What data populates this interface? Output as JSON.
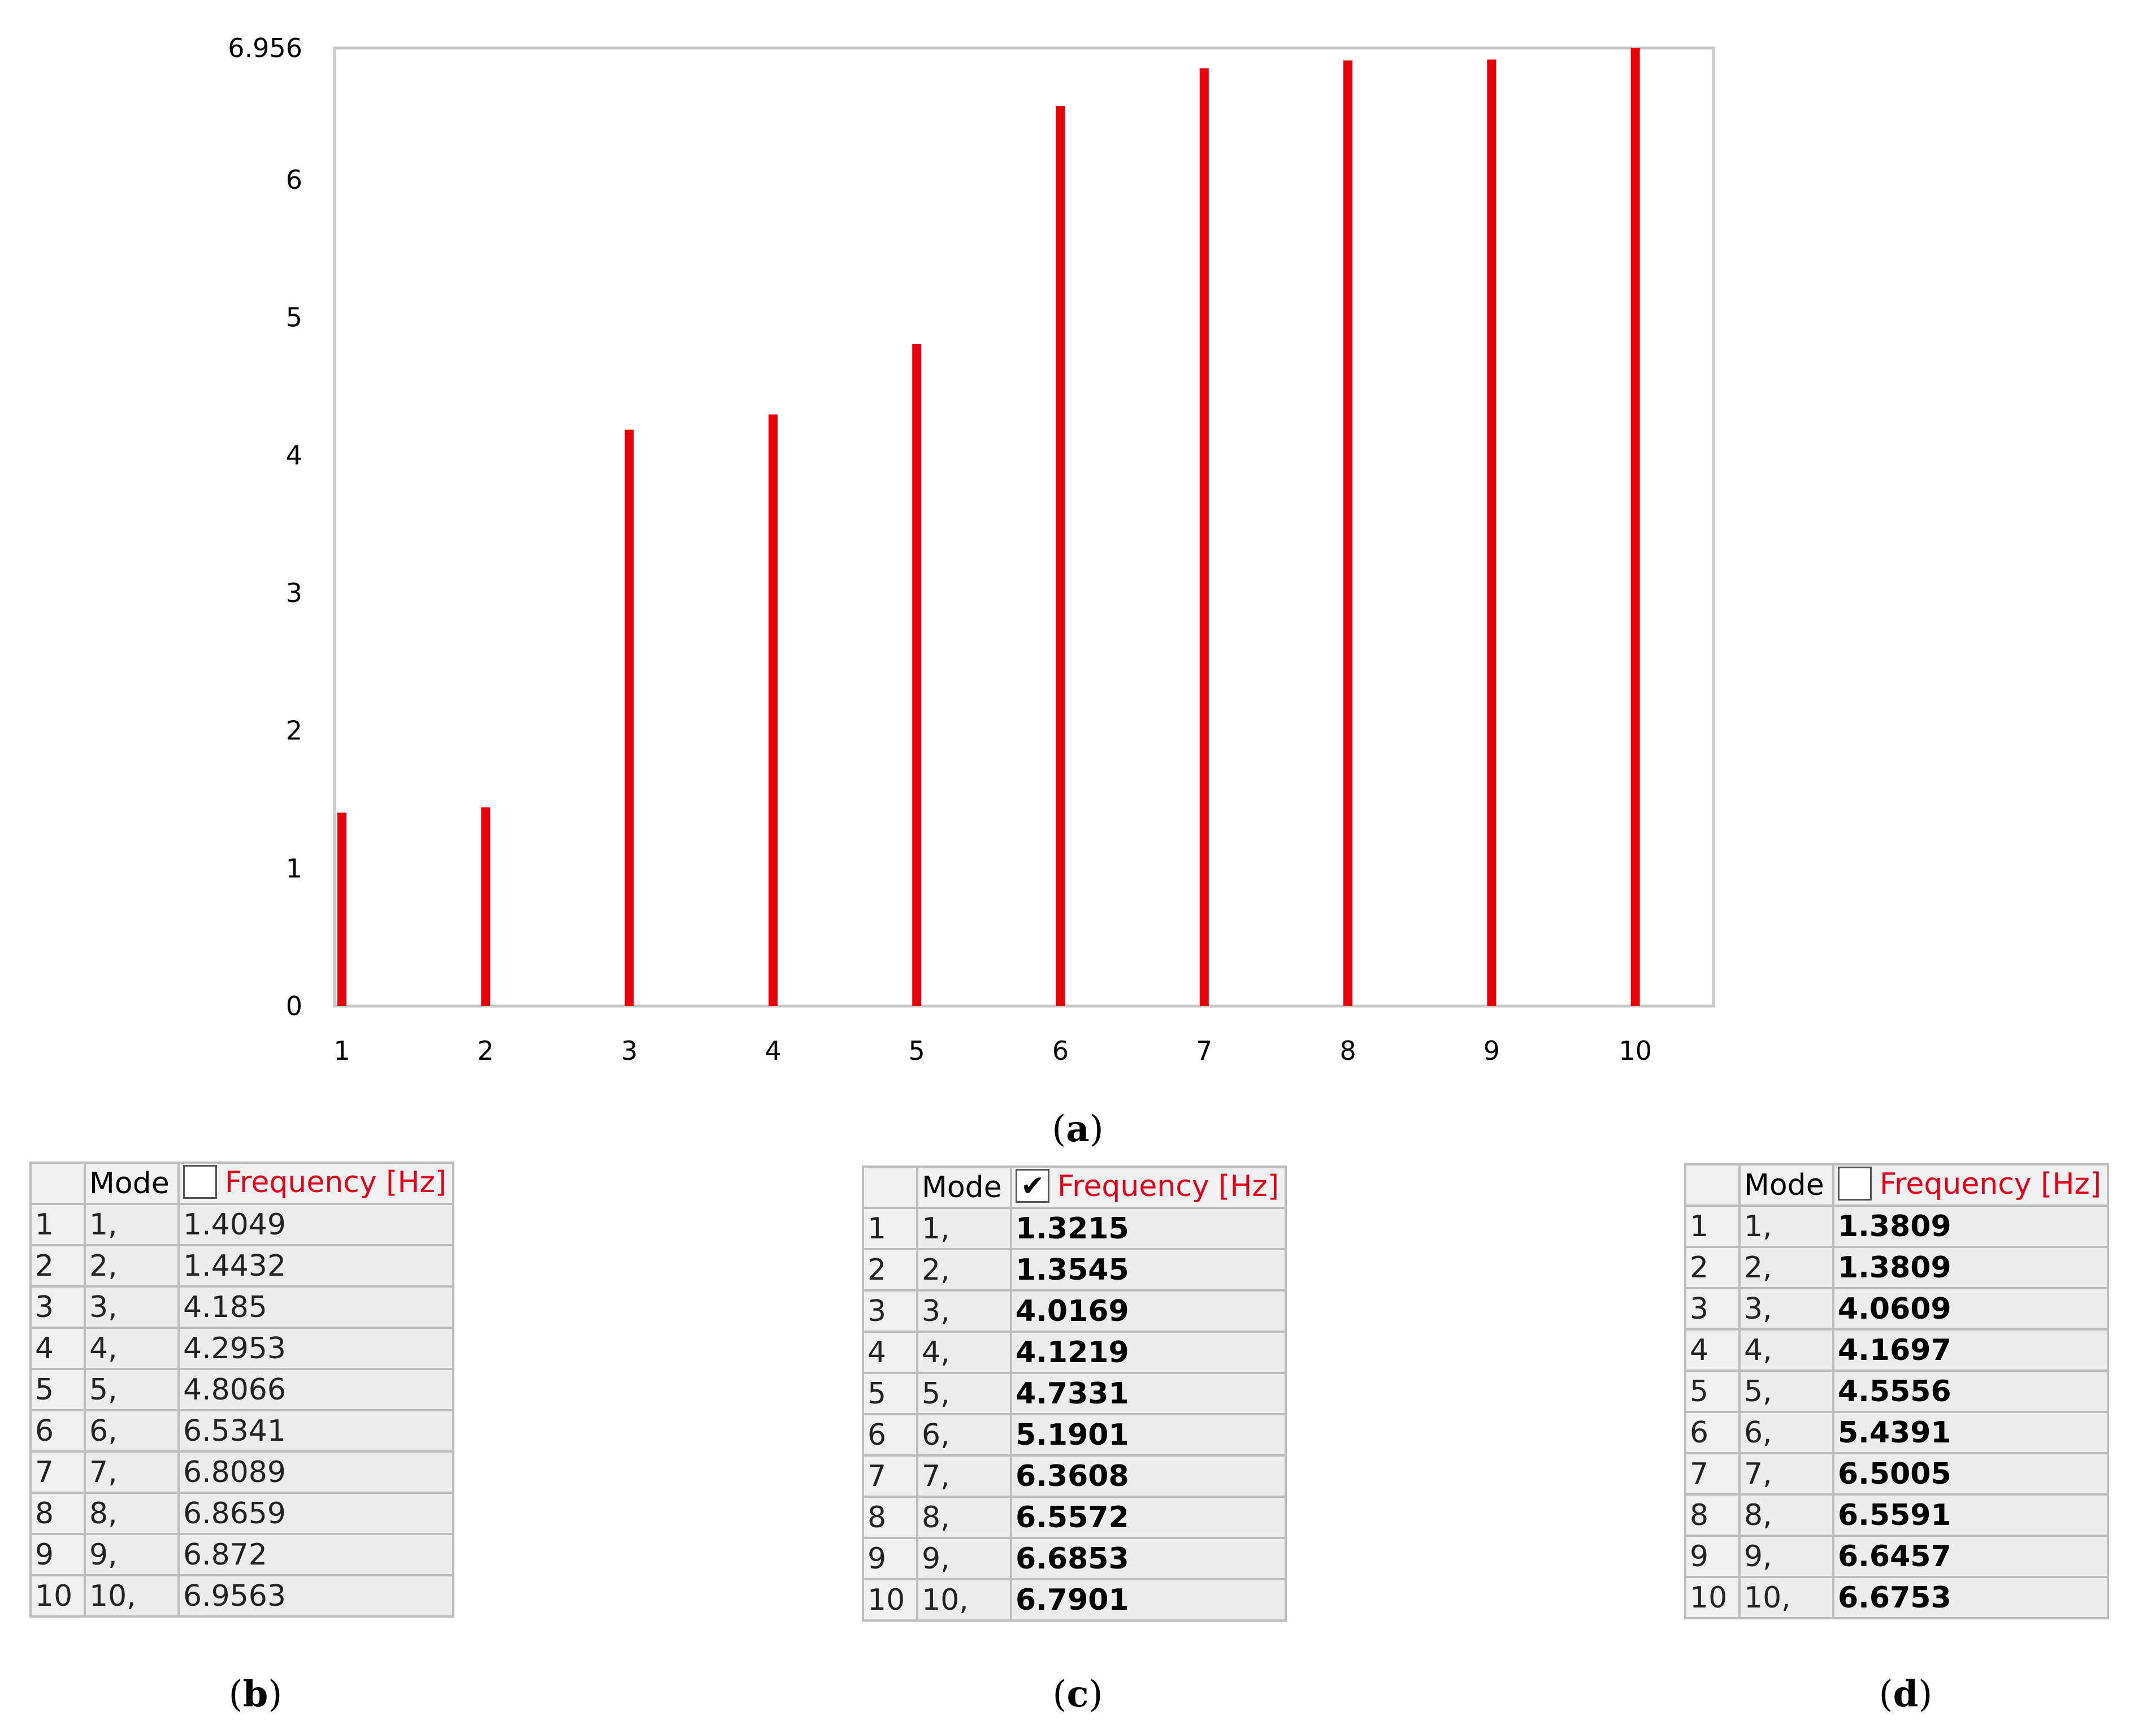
{
  "chart_data": {
    "type": "bar",
    "categories": [
      "1",
      "2",
      "3",
      "4",
      "5",
      "6",
      "7",
      "8",
      "9",
      "10"
    ],
    "values": [
      1.4049,
      1.4432,
      4.185,
      4.2953,
      4.8066,
      6.5341,
      6.8089,
      6.8659,
      6.872,
      6.9563
    ],
    "ylim": [
      0,
      6.956
    ],
    "ytick_labels": [
      "0",
      "1",
      "2",
      "3",
      "4",
      "5",
      "6",
      "6.956"
    ],
    "yticks": [
      0,
      1,
      2,
      3,
      4,
      5,
      6,
      6.956
    ],
    "bar_color": "#e8000b",
    "grid": false
  },
  "panels": {
    "a": "a",
    "b": "b",
    "c": "c",
    "d": "d"
  },
  "tables": [
    {
      "header": {
        "mode": "Mode",
        "frequency": "Frequency [Hz]",
        "checked": ""
      },
      "rows": [
        {
          "idx": "1",
          "mode": "1,",
          "freq": "1.4049"
        },
        {
          "idx": "2",
          "mode": "2,",
          "freq": "1.4432"
        },
        {
          "idx": "3",
          "mode": "3,",
          "freq": "4.185"
        },
        {
          "idx": "4",
          "mode": "4,",
          "freq": "4.2953"
        },
        {
          "idx": "5",
          "mode": "5,",
          "freq": "4.8066"
        },
        {
          "idx": "6",
          "mode": "6,",
          "freq": "6.5341"
        },
        {
          "idx": "7",
          "mode": "7,",
          "freq": "6.8089"
        },
        {
          "idx": "8",
          "mode": "8,",
          "freq": "6.8659"
        },
        {
          "idx": "9",
          "mode": "9,",
          "freq": "6.872"
        },
        {
          "idx": "10",
          "mode": "10,",
          "freq": "6.9563"
        }
      ]
    },
    {
      "header": {
        "mode": "Mode",
        "frequency": "Frequency [Hz]",
        "checked": "✔"
      },
      "rows": [
        {
          "idx": "1",
          "mode": "1,",
          "freq": "1.3215"
        },
        {
          "idx": "2",
          "mode": "2,",
          "freq": "1.3545"
        },
        {
          "idx": "3",
          "mode": "3,",
          "freq": "4.0169"
        },
        {
          "idx": "4",
          "mode": "4,",
          "freq": "4.1219"
        },
        {
          "idx": "5",
          "mode": "5,",
          "freq": "4.7331"
        },
        {
          "idx": "6",
          "mode": "6,",
          "freq": "5.1901"
        },
        {
          "idx": "7",
          "mode": "7,",
          "freq": "6.3608"
        },
        {
          "idx": "8",
          "mode": "8,",
          "freq": "6.5572"
        },
        {
          "idx": "9",
          "mode": "9,",
          "freq": "6.6853"
        },
        {
          "idx": "10",
          "mode": "10,",
          "freq": "6.7901"
        }
      ]
    },
    {
      "header": {
        "mode": "Mode",
        "frequency": "Frequency [Hz]",
        "checked": ""
      },
      "rows": [
        {
          "idx": "1",
          "mode": "1,",
          "freq": "1.3809"
        },
        {
          "idx": "2",
          "mode": "2,",
          "freq": "1.3809"
        },
        {
          "idx": "3",
          "mode": "3,",
          "freq": "4.0609"
        },
        {
          "idx": "4",
          "mode": "4,",
          "freq": "4.1697"
        },
        {
          "idx": "5",
          "mode": "5,",
          "freq": "4.5556"
        },
        {
          "idx": "6",
          "mode": "6,",
          "freq": "5.4391"
        },
        {
          "idx": "7",
          "mode": "7,",
          "freq": "6.5005"
        },
        {
          "idx": "8",
          "mode": "8,",
          "freq": "6.5591"
        },
        {
          "idx": "9",
          "mode": "9,",
          "freq": "6.6457"
        },
        {
          "idx": "10",
          "mode": "10,",
          "freq": "6.6753"
        }
      ]
    }
  ]
}
